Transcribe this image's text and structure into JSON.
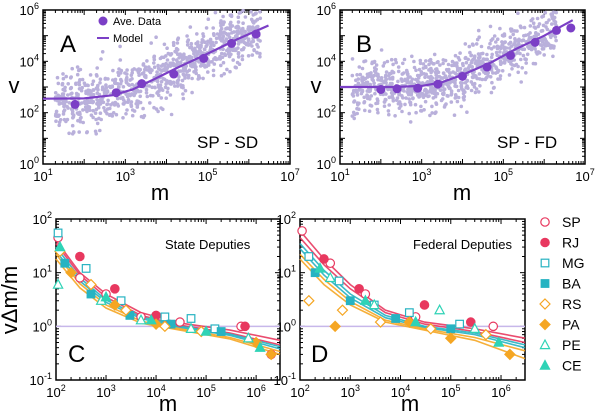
{
  "colors": {
    "purple": "#7b3fc6",
    "scatter": "#b9b0db",
    "refline": "#c7b7ea",
    "SP": "#e8385f",
    "RJ": "#e8385f",
    "MG": "#27b3c2",
    "BA": "#27b3c2",
    "RS": "#f5a623",
    "PA": "#f5a623",
    "PE": "#2fd3b6",
    "CE": "#2fd3b6"
  },
  "chart_data": [
    {
      "type": "scatter",
      "panel": "A",
      "label": "SP - SD",
      "xlabel": "m",
      "ylabel": "v",
      "xscale": "log",
      "yscale": "log",
      "xlim": [
        10,
        10000000
      ],
      "ylim": [
        1,
        1000000
      ],
      "xticks": [
        "10^1",
        "10^3",
        "10^5",
        "10^7"
      ],
      "yticks": [
        "10^0",
        "10^2",
        "10^4",
        "10^6"
      ],
      "legend": {
        "position": "top-left",
        "entries": [
          "Ave. Data",
          "Model"
        ]
      },
      "series": [
        {
          "name": "Ave. Data",
          "points": [
            [
              60,
              210
            ],
            [
              600,
              600
            ],
            [
              2500,
              1350
            ],
            [
              15000,
              3200
            ],
            [
              80000,
              13000
            ],
            [
              380000,
              50000
            ],
            [
              1500000,
              115000
            ]
          ]
        },
        {
          "name": "Model",
          "style": "line",
          "points": [
            [
              10,
              350
            ],
            [
              100,
              360
            ],
            [
              500,
              480
            ],
            [
              1500,
              800
            ],
            [
              5000,
              2000
            ],
            [
              20000,
              6000
            ],
            [
              100000,
              20000
            ],
            [
              500000,
              70000
            ],
            [
              3000000,
              250000
            ]
          ]
        }
      ]
    },
    {
      "type": "scatter",
      "panel": "B",
      "label": "SP - FD",
      "xlabel": "m",
      "ylabel": "v",
      "xscale": "log",
      "yscale": "log",
      "xlim": [
        10,
        10000000
      ],
      "ylim": [
        1,
        1000000
      ],
      "xticks": [
        "10^1",
        "10^3",
        "10^5",
        "10^7"
      ],
      "yticks": [
        "10^0",
        "10^2",
        "10^4",
        "10^6"
      ],
      "series": [
        {
          "name": "Ave. Data",
          "points": [
            [
              100,
              800
            ],
            [
              250,
              850
            ],
            [
              800,
              900
            ],
            [
              2500,
              1300
            ],
            [
              10000,
              2600
            ],
            [
              40000,
              6000
            ],
            [
              150000,
              17000
            ],
            [
              600000,
              55000
            ],
            [
              2000000,
              160000
            ],
            [
              4500000,
              200000
            ]
          ]
        },
        {
          "name": "Model",
          "style": "line",
          "points": [
            [
              10,
              1000
            ],
            [
              200,
              1000
            ],
            [
              1000,
              1100
            ],
            [
              3000,
              1500
            ],
            [
              10000,
              3000
            ],
            [
              50000,
              9000
            ],
            [
              200000,
              30000
            ],
            [
              1000000,
              100000
            ],
            [
              5000000,
              400000
            ]
          ]
        }
      ]
    },
    {
      "type": "scatter",
      "panel": "C",
      "label": "State Deputies",
      "xlabel": "m",
      "ylabel": "vΔm/m",
      "xscale": "log",
      "yscale": "log",
      "xlim": [
        100,
        3000000
      ],
      "ylim": [
        0.1,
        100
      ],
      "xticks": [
        "10^2",
        "10^3",
        "10^4",
        "10^5",
        "10^6"
      ],
      "yticks": [
        "10^-1",
        "10^0",
        "10^1",
        "10^2"
      ],
      "reference_line": 1,
      "series": [
        {
          "name": "SP",
          "marker": "open-circle",
          "points": [
            [
              110,
              45
            ],
            [
              300,
              8
            ],
            [
              1000,
              4
            ],
            [
              5000,
              1.5
            ],
            [
              30000,
              1.2
            ],
            [
              500000,
              1.0
            ]
          ]
        },
        {
          "name": "RJ",
          "marker": "filled-circle",
          "points": [
            [
              300,
              20
            ],
            [
              1500,
              5
            ],
            [
              10000,
              1.6
            ],
            [
              600000,
              1.0
            ],
            [
              2000000,
              0.3
            ]
          ]
        },
        {
          "name": "MG",
          "marker": "open-square",
          "points": [
            [
              110,
              55
            ],
            [
              400,
              12
            ],
            [
              2000,
              3
            ],
            [
              15000,
              1.5
            ],
            [
              50000,
              1.4
            ],
            [
              150000,
              0.9
            ]
          ]
        },
        {
          "name": "BA",
          "marker": "filled-square",
          "points": [
            [
              150,
              15
            ],
            [
              500,
              4
            ],
            [
              3000,
              1.6
            ],
            [
              20000,
              1.1
            ],
            [
              200000,
              0.8
            ]
          ]
        },
        {
          "name": "RS",
          "marker": "open-diamond",
          "points": [
            [
              120,
              25
            ],
            [
              500,
              6
            ],
            [
              2500,
              2
            ],
            [
              15000,
              1.0
            ],
            [
              80000,
              0.8
            ]
          ]
        },
        {
          "name": "PA",
          "marker": "filled-diamond",
          "points": [
            [
              200,
              10
            ],
            [
              1500,
              2.5
            ],
            [
              10000,
              1.1
            ],
            [
              1000000,
              0.5
            ],
            [
              2000000,
              0.3
            ]
          ]
        },
        {
          "name": "PE",
          "marker": "open-triangle",
          "points": [
            [
              110,
              6
            ],
            [
              800,
              3
            ],
            [
              5000,
              1.3
            ],
            [
              50000,
              0.9
            ],
            [
              700000,
              0.6
            ]
          ]
        },
        {
          "name": "CE",
          "marker": "filled-triangle",
          "points": [
            [
              120,
              30
            ],
            [
              1000,
              3.5
            ],
            [
              8000,
              1.3
            ],
            [
              100000,
              0.8
            ],
            [
              1200000,
              0.4
            ]
          ]
        }
      ],
      "fits": [
        {
          "name": "SP",
          "points": [
            [
              100,
              40
            ],
            [
              300,
              10
            ],
            [
              1000,
              4
            ],
            [
              5000,
              1.8
            ],
            [
              30000,
              1.15
            ],
            [
              300000,
              0.85
            ],
            [
              3000000,
              0.55
            ]
          ]
        },
        {
          "name": "RJ",
          "points": [
            [
              100,
              35
            ],
            [
              300,
              9
            ],
            [
              1000,
              3.5
            ],
            [
              5000,
              1.6
            ],
            [
              30000,
              1.05
            ],
            [
              300000,
              0.75
            ],
            [
              3000000,
              0.45
            ]
          ]
        },
        {
          "name": "MG",
          "points": [
            [
              100,
              30
            ],
            [
              300,
              8
            ],
            [
              1000,
              3.1
            ],
            [
              5000,
              1.5
            ],
            [
              30000,
              1.0
            ],
            [
              300000,
              0.72
            ],
            [
              3000000,
              0.42
            ]
          ]
        },
        {
          "name": "BA",
          "points": [
            [
              100,
              25
            ],
            [
              300,
              7
            ],
            [
              1000,
              2.8
            ],
            [
              5000,
              1.4
            ],
            [
              30000,
              0.95
            ],
            [
              300000,
              0.68
            ],
            [
              3000000,
              0.38
            ]
          ]
        },
        {
          "name": "RS",
          "points": [
            [
              100,
              22
            ],
            [
              300,
              6.2
            ],
            [
              1000,
              2.5
            ],
            [
              5000,
              1.25
            ],
            [
              30000,
              0.9
            ],
            [
              300000,
              0.62
            ],
            [
              3000000,
              0.34
            ]
          ]
        },
        {
          "name": "PA",
          "points": [
            [
              100,
              18
            ],
            [
              300,
              5.2
            ],
            [
              1000,
              2.2
            ],
            [
              5000,
              1.15
            ],
            [
              30000,
              0.85
            ],
            [
              300000,
              0.58
            ],
            [
              3000000,
              0.3
            ]
          ]
        }
      ]
    },
    {
      "type": "scatter",
      "panel": "D",
      "label": "Federal Deputies",
      "xlabel": "m",
      "ylabel": "vΔm/m",
      "xscale": "log",
      "yscale": "log",
      "xlim": [
        100,
        3000000
      ],
      "ylim": [
        0.1,
        100
      ],
      "xticks": [
        "10^2",
        "10^3",
        "10^4",
        "10^5",
        "10^6"
      ],
      "yticks": [
        "10^-1",
        "10^0",
        "10^1",
        "10^2"
      ],
      "reference_line": 1,
      "series": [
        {
          "name": "SP",
          "marker": "open-circle",
          "points": [
            [
              110,
              60
            ],
            [
              400,
              15
            ],
            [
              2000,
              4
            ],
            [
              20000,
              1.5
            ],
            [
              700000,
              1.0
            ]
          ]
        },
        {
          "name": "RJ",
          "marker": "filled-circle",
          "points": [
            [
              300,
              18
            ],
            [
              1500,
              5
            ],
            [
              30000,
              2.5
            ],
            [
              250000,
              1.2
            ]
          ]
        },
        {
          "name": "MG",
          "marker": "open-square",
          "points": [
            [
              150,
              20
            ],
            [
              600,
              7
            ],
            [
              3000,
              2.5
            ],
            [
              15000,
              1.8
            ],
            [
              150000,
              1.1
            ]
          ]
        },
        {
          "name": "BA",
          "marker": "filled-square",
          "points": [
            [
              200,
              10
            ],
            [
              1000,
              3
            ],
            [
              8000,
              1.4
            ],
            [
              100000,
              0.9
            ]
          ]
        },
        {
          "name": "RS",
          "marker": "open-diamond",
          "points": [
            [
              150,
              3
            ],
            [
              700,
              2
            ],
            [
              4000,
              1.2
            ],
            [
              40000,
              0.9
            ],
            [
              500000,
              0.7
            ]
          ]
        },
        {
          "name": "PA",
          "marker": "filled-diamond",
          "points": [
            [
              500,
              1.0
            ],
            [
              15000,
              1.2
            ],
            [
              100000,
              0.6
            ],
            [
              1500000,
              0.3
            ]
          ]
        },
        {
          "name": "PE",
          "marker": "open-triangle",
          "points": [
            [
              400,
              8
            ],
            [
              3000,
              2.5
            ],
            [
              60000,
              2.0
            ],
            [
              300000,
              0.9
            ]
          ]
        },
        {
          "name": "CE",
          "marker": "filled-triangle",
          "points": [
            [
              250,
              12
            ],
            [
              2000,
              3
            ],
            [
              20000,
              1.2
            ],
            [
              900000,
              0.5
            ]
          ]
        }
      ],
      "fits": [
        {
          "name": "SP",
          "points": [
            [
              100,
              60
            ],
            [
              300,
              18
            ],
            [
              1000,
              6
            ],
            [
              5000,
              2
            ],
            [
              30000,
              1.2
            ],
            [
              300000,
              0.9
            ],
            [
              3000000,
              0.6
            ]
          ]
        },
        {
          "name": "RJ",
          "points": [
            [
              100,
              45
            ],
            [
              300,
              14
            ],
            [
              1000,
              5
            ],
            [
              5000,
              1.8
            ],
            [
              30000,
              1.1
            ],
            [
              300000,
              0.8
            ],
            [
              3000000,
              0.5
            ]
          ]
        },
        {
          "name": "MG",
          "points": [
            [
              100,
              35
            ],
            [
              300,
              11
            ],
            [
              1000,
              4
            ],
            [
              5000,
              1.6
            ],
            [
              30000,
              1.0
            ],
            [
              300000,
              0.75
            ],
            [
              3000000,
              0.45
            ]
          ]
        },
        {
          "name": "BA",
          "points": [
            [
              100,
              28
            ],
            [
              300,
              9
            ],
            [
              1000,
              3.4
            ],
            [
              5000,
              1.45
            ],
            [
              30000,
              0.95
            ],
            [
              300000,
              0.7
            ],
            [
              3000000,
              0.4
            ]
          ]
        },
        {
          "name": "RS",
          "points": [
            [
              100,
              22
            ],
            [
              300,
              7.5
            ],
            [
              1000,
              2.9
            ],
            [
              5000,
              1.3
            ],
            [
              30000,
              0.9
            ],
            [
              300000,
              0.62
            ],
            [
              3000000,
              0.35
            ]
          ]
        },
        {
          "name": "PA",
          "points": [
            [
              100,
              18
            ],
            [
              300,
              6
            ],
            [
              1000,
              2.5
            ],
            [
              5000,
              1.2
            ],
            [
              30000,
              0.85
            ],
            [
              300000,
              0.55
            ],
            [
              3000000,
              0.25
            ]
          ]
        }
      ]
    }
  ],
  "side_legend": [
    {
      "name": "SP",
      "marker": "open-circle"
    },
    {
      "name": "RJ",
      "marker": "filled-circle"
    },
    {
      "name": "MG",
      "marker": "open-square"
    },
    {
      "name": "BA",
      "marker": "filled-square"
    },
    {
      "name": "RS",
      "marker": "open-diamond"
    },
    {
      "name": "PA",
      "marker": "filled-diamond"
    },
    {
      "name": "PE",
      "marker": "open-triangle"
    },
    {
      "name": "CE",
      "marker": "filled-triangle"
    }
  ]
}
